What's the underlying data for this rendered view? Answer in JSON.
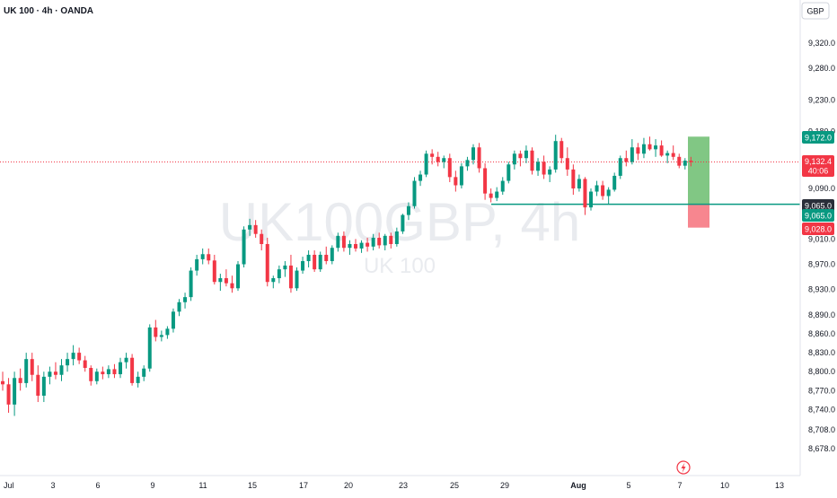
{
  "header": {
    "symbol_title": "UK 100 · 4h · OANDA",
    "currency_button": "GBP"
  },
  "watermark": {
    "main": "UK100GBP, 4h",
    "sub": "UK 100"
  },
  "colors": {
    "up": "#089981",
    "down": "#f23645",
    "target_zone": "#4caf50",
    "stop_zone": "#f23645",
    "entry_line": "#089981",
    "current_price_line": "#f23645",
    "axis_text": "#131722"
  },
  "time_axis": {
    "labels": [
      "Jul",
      "3",
      "6",
      "9",
      "11",
      "15",
      "17",
      "20",
      "23",
      "25",
      "29",
      "Aug",
      "5",
      "7",
      "10",
      "13"
    ]
  },
  "chart_data": {
    "type": "candlestick",
    "symbol": "UK100GBP",
    "interval": "4h",
    "price_axis": {
      "range": [
        8655,
        9370
      ],
      "ticks": [
        9320.0,
        9280.0,
        9230.0,
        9180.0,
        9090.0,
        9010.0,
        8970.0,
        8930.0,
        8890.0,
        8860.0,
        8830.0,
        8800.0,
        8770.0,
        8740.0,
        8708.0,
        8678.0
      ]
    },
    "price_labels": {
      "target": "9,172.0",
      "current": "9,132.4",
      "countdown": "40:06",
      "entry_dark": "9,065.0",
      "entry": "9,065.0",
      "stop": "9,028.0"
    },
    "position": {
      "side": "long",
      "entry": 9065.0,
      "target": 9172.0,
      "stop": 9028.0
    },
    "candles_ohlc": [
      [
        8785,
        8800,
        8770,
        8780
      ],
      [
        8780,
        8790,
        8735,
        8748
      ],
      [
        8748,
        8800,
        8730,
        8790
      ],
      [
        8790,
        8805,
        8770,
        8782
      ],
      [
        8782,
        8830,
        8775,
        8820
      ],
      [
        8820,
        8830,
        8785,
        8795
      ],
      [
        8795,
        8810,
        8752,
        8762
      ],
      [
        8762,
        8800,
        8752,
        8792
      ],
      [
        8792,
        8808,
        8780,
        8800
      ],
      [
        8800,
        8815,
        8788,
        8795
      ],
      [
        8795,
        8820,
        8785,
        8810
      ],
      [
        8810,
        8830,
        8800,
        8820
      ],
      [
        8820,
        8842,
        8810,
        8830
      ],
      [
        8830,
        8838,
        8812,
        8818
      ],
      [
        8818,
        8825,
        8800,
        8806
      ],
      [
        8806,
        8810,
        8778,
        8785
      ],
      [
        8785,
        8805,
        8780,
        8800
      ],
      [
        8800,
        8808,
        8788,
        8796
      ],
      [
        8796,
        8810,
        8790,
        8804
      ],
      [
        8804,
        8812,
        8790,
        8796
      ],
      [
        8796,
        8822,
        8790,
        8815
      ],
      [
        8815,
        8830,
        8805,
        8822
      ],
      [
        8822,
        8828,
        8778,
        8782
      ],
      [
        8782,
        8800,
        8775,
        8792
      ],
      [
        8792,
        8810,
        8785,
        8805
      ],
      [
        8805,
        8875,
        8800,
        8870
      ],
      [
        8870,
        8882,
        8848,
        8855
      ],
      [
        8855,
        8865,
        8848,
        8858
      ],
      [
        8858,
        8872,
        8852,
        8868
      ],
      [
        8868,
        8900,
        8862,
        8895
      ],
      [
        8895,
        8915,
        8888,
        8910
      ],
      [
        8910,
        8925,
        8900,
        8918
      ],
      [
        8918,
        8965,
        8912,
        8960
      ],
      [
        8960,
        8985,
        8952,
        8978
      ],
      [
        8978,
        8995,
        8970,
        8986
      ],
      [
        8986,
        8995,
        8970,
        8976
      ],
      [
        8976,
        8985,
        8938,
        8942
      ],
      [
        8942,
        8955,
        8928,
        8948
      ],
      [
        8948,
        8962,
        8935,
        8940
      ],
      [
        8940,
        8952,
        8925,
        8932
      ],
      [
        8932,
        8975,
        8928,
        8970
      ],
      [
        8970,
        9030,
        8965,
        9025
      ],
      [
        9025,
        9042,
        9015,
        9032
      ],
      [
        9032,
        9040,
        9012,
        9018
      ],
      [
        9018,
        9025,
        8992,
        9002
      ],
      [
        9002,
        9012,
        8935,
        8942
      ],
      [
        8942,
        8952,
        8932,
        8948
      ],
      [
        8948,
        8968,
        8940,
        8962
      ],
      [
        8962,
        8975,
        8950,
        8968
      ],
      [
        8968,
        8985,
        8925,
        8932
      ],
      [
        8932,
        8965,
        8928,
        8960
      ],
      [
        8960,
        8982,
        8955,
        8975
      ],
      [
        8975,
        8992,
        8965,
        8985
      ],
      [
        8985,
        8992,
        8958,
        8962
      ],
      [
        8962,
        8990,
        8958,
        8985
      ],
      [
        8985,
        8998,
        8970,
        8975
      ],
      [
        8975,
        9000,
        8970,
        8996
      ],
      [
        8996,
        9020,
        8990,
        9015
      ],
      [
        9015,
        9022,
        8990,
        8996
      ],
      [
        8996,
        9008,
        8985,
        9002
      ],
      [
        9002,
        9010,
        8990,
        8995
      ],
      [
        8995,
        9008,
        8988,
        9004
      ],
      [
        9004,
        9012,
        8990,
        8998
      ],
      [
        8998,
        9018,
        8992,
        9012
      ],
      [
        9012,
        9020,
        8995,
        9000
      ],
      [
        9000,
        9018,
        8992,
        9015
      ],
      [
        9015,
        9020,
        8995,
        9002
      ],
      [
        9002,
        9028,
        8998,
        9022
      ],
      [
        9022,
        9050,
        9018,
        9048
      ],
      [
        9048,
        9068,
        9040,
        9062
      ],
      [
        9062,
        9108,
        9058,
        9102
      ],
      [
        9102,
        9118,
        9094,
        9112
      ],
      [
        9112,
        9150,
        9108,
        9145
      ],
      [
        9145,
        9152,
        9128,
        9140
      ],
      [
        9140,
        9148,
        9125,
        9132
      ],
      [
        9132,
        9142,
        9122,
        9138
      ],
      [
        9138,
        9145,
        9100,
        9108
      ],
      [
        9108,
        9118,
        9085,
        9095
      ],
      [
        9095,
        9130,
        9090,
        9125
      ],
      [
        9125,
        9140,
        9118,
        9135
      ],
      [
        9135,
        9160,
        9128,
        9155
      ],
      [
        9155,
        9162,
        9115,
        9122
      ],
      [
        9122,
        9130,
        9072,
        9082
      ],
      [
        9082,
        9090,
        9068,
        9075
      ],
      [
        9075,
        9092,
        9070,
        9085
      ],
      [
        9085,
        9108,
        9080,
        9102
      ],
      [
        9102,
        9132,
        9098,
        9128
      ],
      [
        9128,
        9150,
        9120,
        9145
      ],
      [
        9145,
        9150,
        9125,
        9138
      ],
      [
        9138,
        9158,
        9130,
        9150
      ],
      [
        9150,
        9155,
        9112,
        9118
      ],
      [
        9118,
        9138,
        9110,
        9132
      ],
      [
        9132,
        9142,
        9105,
        9112
      ],
      [
        9112,
        9125,
        9100,
        9120
      ],
      [
        9120,
        9175,
        9115,
        9165
      ],
      [
        9165,
        9170,
        9130,
        9138
      ],
      [
        9138,
        9155,
        9110,
        9120
      ],
      [
        9120,
        9128,
        9080,
        9090
      ],
      [
        9090,
        9112,
        9085,
        9105
      ],
      [
        9105,
        9108,
        9048,
        9060
      ],
      [
        9060,
        9090,
        9055,
        9085
      ],
      [
        9085,
        9102,
        9078,
        9095
      ],
      [
        9095,
        9102,
        9072,
        9078
      ],
      [
        9078,
        9092,
        9065,
        9088
      ],
      [
        9088,
        9115,
        9085,
        9110
      ],
      [
        9110,
        9142,
        9105,
        9138
      ],
      [
        9138,
        9150,
        9125,
        9132
      ],
      [
        9132,
        9168,
        9128,
        9155
      ],
      [
        9155,
        9162,
        9135,
        9145
      ],
      [
        9145,
        9170,
        9138,
        9160
      ],
      [
        9160,
        9172,
        9150,
        9152
      ],
      [
        9152,
        9168,
        9140,
        9158
      ],
      [
        9158,
        9166,
        9140,
        9142
      ],
      [
        9142,
        9150,
        9130,
        9146
      ],
      [
        9146,
        9158,
        9135,
        9140
      ],
      [
        9140,
        9145,
        9122,
        9126
      ],
      [
        9126,
        9138,
        9120,
        9134
      ],
      [
        9134,
        9140,
        9125,
        9132
      ]
    ]
  }
}
